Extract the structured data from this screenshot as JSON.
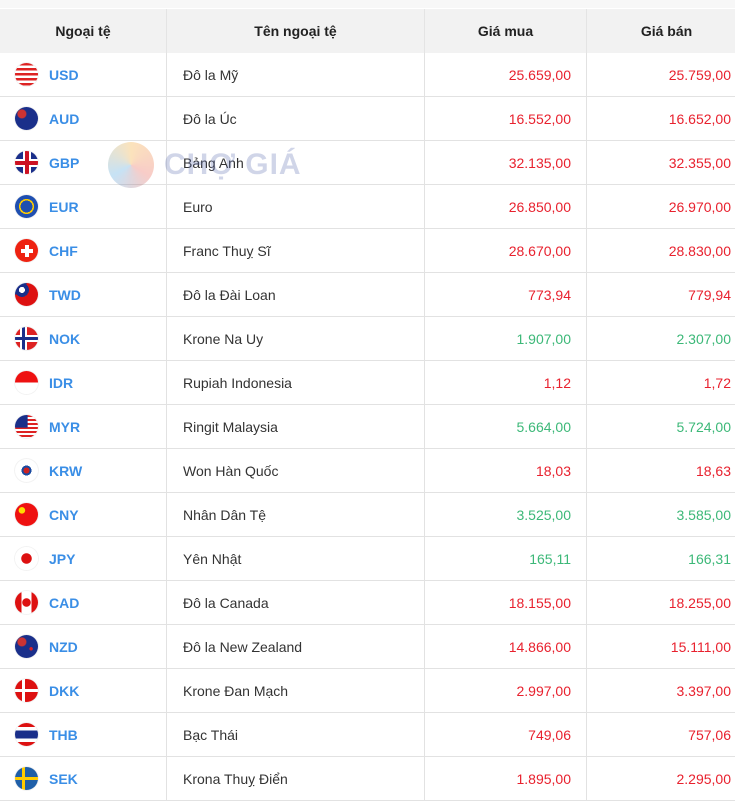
{
  "headers": [
    "Ngoại tệ",
    "Tên ngoại tệ",
    "Giá mua",
    "Giá bán"
  ],
  "watermark": "CHỢ GIÁ",
  "colors": {
    "up": "#e8212e",
    "down": "#3cb878",
    "code": "#3a8ee6"
  },
  "rows": [
    {
      "code": "USD",
      "name": "Đô la Mỹ",
      "buy": "25.659,00",
      "sell": "25.759,00",
      "trend": "red",
      "flag": "us-flag"
    },
    {
      "code": "AUD",
      "name": "Đô la Úc",
      "buy": "16.552,00",
      "sell": "16.652,00",
      "trend": "red",
      "flag": "au-flag"
    },
    {
      "code": "GBP",
      "name": "Bảng Anh",
      "buy": "32.135,00",
      "sell": "32.355,00",
      "trend": "red",
      "flag": "gb-flag"
    },
    {
      "code": "EUR",
      "name": "Euro",
      "buy": "26.850,00",
      "sell": "26.970,00",
      "trend": "red",
      "flag": "eu-flag"
    },
    {
      "code": "CHF",
      "name": "Franc Thuỵ Sĩ",
      "buy": "28.670,00",
      "sell": "28.830,00",
      "trend": "red",
      "flag": "ch-flag"
    },
    {
      "code": "TWD",
      "name": "Đô la Đài Loan",
      "buy": "773,94",
      "sell": "779,94",
      "trend": "red",
      "flag": "tw-flag"
    },
    {
      "code": "NOK",
      "name": "Krone Na Uy",
      "buy": "1.907,00",
      "sell": "2.307,00",
      "trend": "green",
      "flag": "no-flag"
    },
    {
      "code": "IDR",
      "name": "Rupiah Indonesia",
      "buy": "1,12",
      "sell": "1,72",
      "trend": "red",
      "flag": "id-flag"
    },
    {
      "code": "MYR",
      "name": "Ringit Malaysia",
      "buy": "5.664,00",
      "sell": "5.724,00",
      "trend": "green",
      "flag": "my-flag"
    },
    {
      "code": "KRW",
      "name": "Won Hàn Quốc",
      "buy": "18,03",
      "sell": "18,63",
      "trend": "red",
      "flag": "kr-flag"
    },
    {
      "code": "CNY",
      "name": "Nhân Dân Tệ",
      "buy": "3.525,00",
      "sell": "3.585,00",
      "trend": "green",
      "flag": "cn-flag"
    },
    {
      "code": "JPY",
      "name": "Yên Nhật",
      "buy": "165,11",
      "sell": "166,31",
      "trend": "green",
      "flag": "jp-flag"
    },
    {
      "code": "CAD",
      "name": "Đô la Canada",
      "buy": "18.155,00",
      "sell": "18.255,00",
      "trend": "red",
      "flag": "ca-flag"
    },
    {
      "code": "NZD",
      "name": "Đô la New Zealand",
      "buy": "14.866,00",
      "sell": "15.111,00",
      "trend": "red",
      "flag": "nz-flag"
    },
    {
      "code": "DKK",
      "name": "Krone Đan Mạch",
      "buy": "2.997,00",
      "sell": "3.397,00",
      "trend": "red",
      "flag": "dk-flag"
    },
    {
      "code": "THB",
      "name": "Bạc Thái",
      "buy": "749,06",
      "sell": "757,06",
      "trend": "red",
      "flag": "th-flag"
    },
    {
      "code": "SEK",
      "name": "Krona Thuỵ Điển",
      "buy": "1.895,00",
      "sell": "2.295,00",
      "trend": "red",
      "flag": "se-flag"
    }
  ]
}
